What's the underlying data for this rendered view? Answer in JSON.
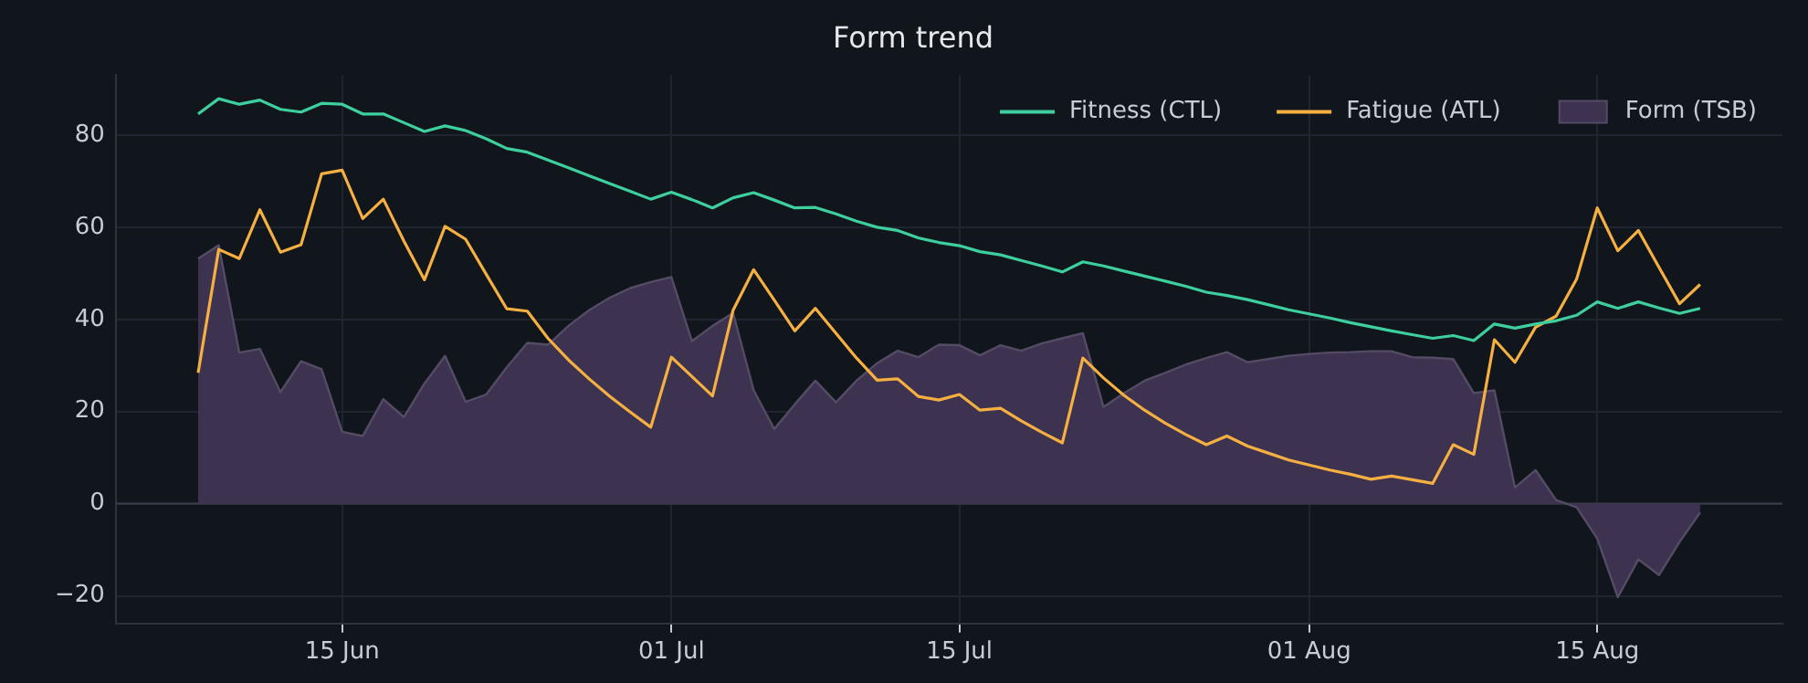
{
  "chart_data": {
    "type": "line",
    "title": "Form trend",
    "x": [
      "--06-08",
      "--06-09",
      "--06-10",
      "--06-11",
      "--06-12",
      "--06-13",
      "--06-14",
      "--06-15",
      "--06-16",
      "--06-17",
      "--06-18",
      "--06-19",
      "--06-20",
      "--06-21",
      "--06-22",
      "--06-23",
      "--06-24",
      "--06-25",
      "--06-26",
      "--06-27",
      "--06-28",
      "--06-29",
      "--06-30",
      "--07-01",
      "--07-02",
      "--07-03",
      "--07-04",
      "--07-05",
      "--07-06",
      "--07-07",
      "--07-08",
      "--07-09",
      "--07-10",
      "--07-11",
      "--07-12",
      "--07-13",
      "--07-14",
      "--07-15",
      "--07-16",
      "--07-17",
      "--07-18",
      "--07-19",
      "--07-20",
      "--07-21",
      "--07-22",
      "--07-23",
      "--07-24",
      "--07-25",
      "--07-26",
      "--07-27",
      "--07-28",
      "--07-29",
      "--07-30",
      "--07-31",
      "--08-01",
      "--08-02",
      "--08-03",
      "--08-04",
      "--08-05",
      "--08-06",
      "--08-07",
      "--08-08",
      "--08-09",
      "--08-10",
      "--08-11",
      "--08-12",
      "--08-13",
      "--08-14",
      "--08-15",
      "--08-16",
      "--08-17",
      "--08-18",
      "--08-19",
      "--08-20"
    ],
    "series": [
      {
        "name": "Form (TSB)",
        "type": "area",
        "color": "#3d3350",
        "values": [
          53.2,
          56.1,
          32.8,
          33.6,
          24.2,
          30.9,
          29.2,
          15.6,
          14.7,
          22.7,
          18.8,
          26.1,
          32.1,
          22.1,
          23.7,
          29.6,
          34.9,
          34.5,
          38.6,
          42.0,
          44.7,
          46.8,
          48.1,
          49.2,
          35.3,
          38.6,
          41.4,
          24.6,
          16.2,
          21.6,
          26.7,
          22.0,
          26.7,
          30.5,
          33.2,
          31.8,
          34.5,
          34.4,
          32.2,
          34.4,
          33.2,
          34.8,
          35.9,
          37.0,
          21.0,
          24.0,
          26.7,
          28.4,
          30.2,
          31.6,
          32.9,
          30.7,
          31.4,
          32.1,
          32.5,
          32.8,
          32.9,
          33.1,
          33.1,
          31.8,
          31.7,
          31.4,
          24.0,
          24.6,
          3.5,
          7.3,
          0.8,
          -0.8,
          -7.6,
          -20.3,
          -12.1,
          -15.5,
          -8.3,
          -1.9
        ]
      },
      {
        "name": "Fitness (CTL)",
        "color": "#3ecf9e",
        "values": [
          84.6,
          87.9,
          86.7,
          87.6,
          85.6,
          85.0,
          86.9,
          86.7,
          84.6,
          84.6,
          82.7,
          80.8,
          82.0,
          81.0,
          79.2,
          77.1,
          76.3,
          74.6,
          72.9,
          71.2,
          69.5,
          67.8,
          66.1,
          67.6,
          66.0,
          64.2,
          66.4,
          67.5,
          65.9,
          64.2,
          64.3,
          62.9,
          61.3,
          60.0,
          59.3,
          57.7,
          56.7,
          56.0,
          54.7,
          54.0,
          52.8,
          51.6,
          50.3,
          52.5,
          51.6,
          50.5,
          49.4,
          48.3,
          47.2,
          45.9,
          45.2,
          44.3,
          43.2,
          42.1,
          41.2,
          40.3,
          39.3,
          38.4,
          37.5,
          36.7,
          35.9,
          36.5,
          35.4,
          39.0,
          38.1,
          39.0,
          39.7,
          40.9,
          43.8,
          42.4,
          43.8,
          42.5,
          41.3,
          42.4
        ]
      },
      {
        "name": "Fatigue (ATL)",
        "color": "#f5b041",
        "values": [
          28.4,
          55.2,
          53.2,
          63.8,
          54.6,
          56.2,
          71.6,
          72.4,
          61.9,
          66.1,
          57.0,
          48.6,
          60.2,
          57.4,
          49.8,
          42.3,
          41.8,
          35.9,
          31.2,
          27.1,
          23.3,
          19.9,
          16.6,
          31.8,
          27.6,
          23.4,
          42.0,
          50.8,
          44.2,
          37.5,
          42.4,
          37.0,
          31.6,
          26.8,
          27.1,
          23.3,
          22.5,
          23.7,
          20.3,
          20.7,
          18.0,
          15.5,
          13.2,
          31.6,
          27.3,
          23.5,
          20.3,
          17.5,
          15.0,
          12.8,
          14.7,
          12.5,
          11.0,
          9.5,
          8.4,
          7.3,
          6.4,
          5.3,
          6.0,
          5.2,
          4.4,
          12.8,
          10.7,
          35.6,
          30.7,
          38.3,
          40.7,
          48.8,
          64.2,
          54.9,
          59.3,
          51.3,
          43.4,
          47.6
        ]
      }
    ],
    "xlim": [
      "--06-04",
      "--08-24"
    ],
    "xticks": [
      {
        "value": "--06-15",
        "label": "15 Jun"
      },
      {
        "value": "--07-01",
        "label": "01 Jul"
      },
      {
        "value": "--07-15",
        "label": "15 Jul"
      },
      {
        "value": "--08-01",
        "label": "01 Aug"
      },
      {
        "value": "--08-15",
        "label": "15 Aug"
      }
    ],
    "ylim": [
      -26,
      93
    ],
    "yticks": [
      {
        "value": -20,
        "label": "−20"
      },
      0,
      20,
      40,
      60,
      80
    ],
    "ref_lines": [
      {
        "axis": "y",
        "value": 0,
        "color": "#3a3f4b"
      }
    ],
    "grid": true,
    "legend": "top right"
  }
}
